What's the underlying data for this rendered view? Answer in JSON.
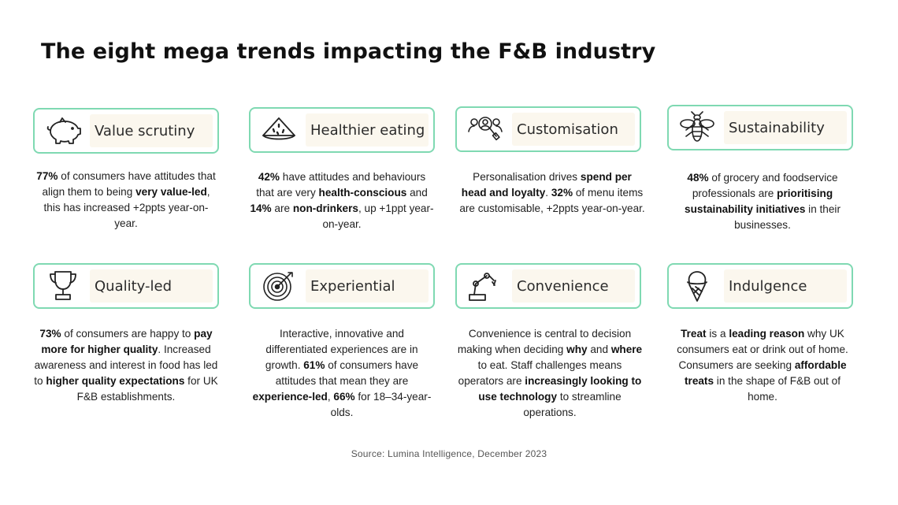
{
  "title": "The eight mega trends impacting the F&B industry",
  "accent_color": "#7fd9b2",
  "label_bg_color": "#fbf7ee",
  "trends": [
    {
      "label": "Value scrutiny",
      "icon": "piggy-bank-icon",
      "desc": [
        {
          "t": "77%",
          "b": true
        },
        {
          "t": " of consumers have attitudes that align them to being "
        },
        {
          "t": "very value-led",
          "b": true
        },
        {
          "t": ", this has increased +2ppts year-on-year."
        }
      ]
    },
    {
      "label": "Healthier eating",
      "icon": "watermelon-icon",
      "desc": [
        {
          "t": "42%",
          "b": true
        },
        {
          "t": " have attitudes and behaviours that are very "
        },
        {
          "t": "health-conscious",
          "b": true
        },
        {
          "t": " and "
        },
        {
          "t": "14%",
          "b": true
        },
        {
          "t": " are "
        },
        {
          "t": "non-drinkers",
          "b": true
        },
        {
          "t": ", up +1ppt year-on-year."
        }
      ]
    },
    {
      "label": "Customisation",
      "icon": "people-search-icon",
      "desc": [
        {
          "t": "Personalisation drives "
        },
        {
          "t": "spend per head and loyalty",
          "b": true
        },
        {
          "t": ". "
        },
        {
          "t": "32%",
          "b": true
        },
        {
          "t": " of menu items are customisable, +2ppts year-on-year."
        }
      ]
    },
    {
      "label": "Sustainability",
      "icon": "bee-icon",
      "desc": [
        {
          "t": "48%",
          "b": true
        },
        {
          "t": " of grocery and foodservice professionals are "
        },
        {
          "t": "prioritising sustainability initiatives",
          "b": true
        },
        {
          "t": " in their businesses."
        }
      ]
    },
    {
      "label": "Quality-led",
      "icon": "trophy-icon",
      "desc": [
        {
          "t": "73%",
          "b": true
        },
        {
          "t": " of consumers are happy to "
        },
        {
          "t": "pay more for higher quality",
          "b": true
        },
        {
          "t": ".  Increased awareness and interest in food has led to "
        },
        {
          "t": "higher quality expectations",
          "b": true
        },
        {
          "t": " for UK F&B establishments."
        }
      ]
    },
    {
      "label": "Experiential",
      "icon": "target-icon",
      "desc": [
        {
          "t": "Interactive, innovative and differentiated experiences are in growth.  "
        },
        {
          "t": "61%",
          "b": true
        },
        {
          "t": " of consumers have attitudes that mean they are "
        },
        {
          "t": "experience-led",
          "b": true
        },
        {
          "t": ", "
        },
        {
          "t": "66%",
          "b": true
        },
        {
          "t": " for 18–34-year-olds."
        }
      ]
    },
    {
      "label": "Convenience",
      "icon": "robot-arm-icon",
      "desc": [
        {
          "t": "Convenience is central to decision making when deciding "
        },
        {
          "t": "why",
          "b": true
        },
        {
          "t": " and "
        },
        {
          "t": "where",
          "b": true
        },
        {
          "t": " to eat.  Staff challenges means operators are "
        },
        {
          "t": "increasingly looking to use technology",
          "b": true
        },
        {
          "t": " to streamline operations."
        }
      ]
    },
    {
      "label": "Indulgence",
      "icon": "ice-cream-icon",
      "desc": [
        {
          "t": "Treat",
          "b": true
        },
        {
          "t": " is a "
        },
        {
          "t": "leading reason",
          "b": true
        },
        {
          "t": " why UK consumers eat or drink out of home. Consumers are seeking "
        },
        {
          "t": "affordable treats",
          "b": true
        },
        {
          "t": " in the shape of F&B out of home."
        }
      ]
    }
  ],
  "source": "Source:  Lumina Intelligence, December 2023"
}
